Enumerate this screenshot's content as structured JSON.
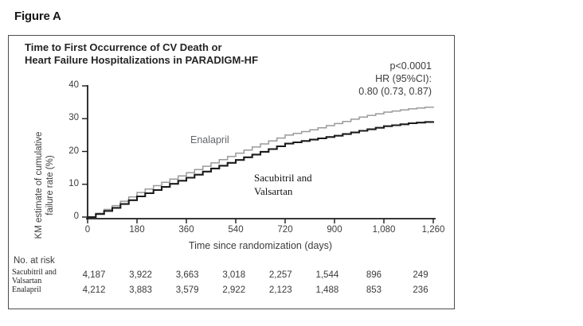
{
  "figure_label": "Figure A",
  "chart": {
    "title_lines": [
      "Time to First Occurrence of CV Death or",
      "Heart Failure Hospitalizations in PARADIGM-HF"
    ],
    "stats_lines": [
      "p<0.0001",
      "HR (95%CI):",
      "0.80 (0.73, 0.87)"
    ],
    "ylabel_lines": [
      "KM estimate of cumulative",
      "failure rate (%)"
    ],
    "xlabel": "Time since randomization (days)",
    "curve_labels": {
      "enalapril": "Enalapril",
      "sacubitril_line1": "Sacubitril and",
      "sacubitril_line2": "Valsartan"
    }
  },
  "chart_data": {
    "type": "line",
    "subtype": "kaplan-meier-cumulative-incidence",
    "title": "Time to First Occurrence of CV Death or Heart Failure Hospitalizations in PARADIGM-HF",
    "xlabel": "Time since randomization (days)",
    "ylabel": "KM estimate of cumulative failure rate (%)",
    "xlim": [
      0,
      1260
    ],
    "ylim": [
      0,
      40
    ],
    "x_tick_values": [
      0,
      180,
      360,
      540,
      720,
      900,
      1080,
      1260
    ],
    "x_tick_labels": [
      "0",
      "180",
      "360",
      "540",
      "720",
      "900",
      "1,080",
      "1,260"
    ],
    "y_tick_values": [
      0,
      10,
      20,
      30,
      40
    ],
    "y_tick_labels": [
      "0",
      "10",
      "20",
      "30",
      "40"
    ],
    "grid": false,
    "legend_position": "inline-curve-labels",
    "annotations": [
      "p<0.0001",
      "HR (95%CI):",
      "0.80 (0.73, 0.87)"
    ],
    "series": [
      {
        "name": "Enalapril",
        "color": "#9a9a9a",
        "stroke_width": 1.5,
        "x": [
          0,
          90,
          180,
          270,
          360,
          450,
          540,
          630,
          720,
          810,
          900,
          990,
          1080,
          1170,
          1260
        ],
        "values": [
          0,
          3.5,
          7.5,
          10.6,
          13.5,
          16.5,
          19.5,
          22.3,
          25.0,
          26.6,
          28.5,
          30.5,
          32.0,
          33.0,
          33.7
        ]
      },
      {
        "name": "Sacubitril and Valsartan",
        "color": "#1b1b1b",
        "stroke_width": 2.1,
        "x": [
          0,
          90,
          180,
          270,
          360,
          450,
          540,
          630,
          720,
          810,
          900,
          990,
          1080,
          1170,
          1260
        ],
        "values": [
          0,
          2.8,
          6.3,
          9.2,
          12.0,
          14.8,
          17.4,
          19.9,
          22.4,
          23.6,
          24.8,
          26.3,
          27.7,
          28.6,
          29.2
        ]
      }
    ]
  },
  "risk_table": {
    "label": "No. at risk",
    "rows": [
      {
        "name_lines": [
          "Sacubitril and",
          "Valsartan"
        ],
        "counts": [
          "4,187",
          "3,922",
          "3,663",
          "3,018",
          "2,257",
          "1,544",
          "896",
          "249"
        ]
      },
      {
        "name_lines": [
          "Enalapril"
        ],
        "counts": [
          "4,212",
          "3,883",
          "3,579",
          "2,922",
          "2,123",
          "1,488",
          "853",
          "236"
        ]
      }
    ]
  }
}
